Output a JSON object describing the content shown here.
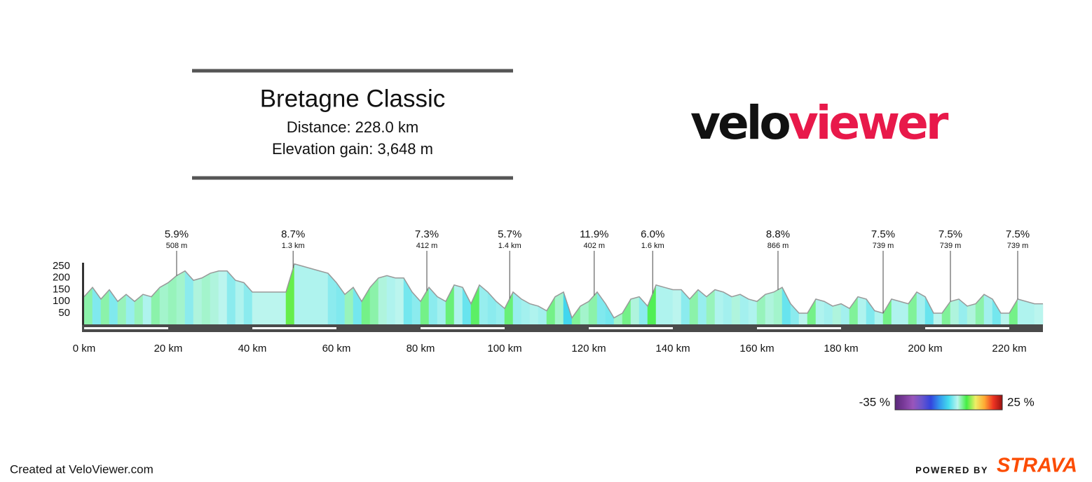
{
  "header": {
    "title": "Bretagne Classic",
    "distance": "Distance: 228.0 km",
    "elevation_gain": "Elevation gain: 3,648 m"
  },
  "logo": {
    "part1": "velo",
    "part2": "viewer"
  },
  "chart_data": {
    "type": "area",
    "x": [
      0,
      2,
      4,
      6,
      8,
      10,
      12,
      14,
      16,
      18,
      20,
      22,
      24,
      26,
      28,
      30,
      32,
      34,
      36,
      38,
      40,
      42,
      44,
      46,
      48,
      50,
      52,
      54,
      56,
      58,
      60,
      62,
      64,
      66,
      68,
      70,
      72,
      74,
      76,
      78,
      80,
      82,
      84,
      86,
      88,
      90,
      92,
      94,
      96,
      98,
      100,
      102,
      104,
      106,
      108,
      110,
      112,
      114,
      116,
      118,
      120,
      122,
      124,
      126,
      128,
      130,
      132,
      134,
      136,
      138,
      140,
      142,
      144,
      146,
      148,
      150,
      152,
      154,
      156,
      158,
      160,
      162,
      164,
      166,
      168,
      170,
      172,
      174,
      176,
      178,
      180,
      182,
      184,
      186,
      188,
      190,
      192,
      194,
      196,
      198,
      200,
      202,
      204,
      206,
      208,
      210,
      212,
      214,
      216,
      218,
      220,
      222,
      224,
      226,
      228
    ],
    "values": [
      120,
      160,
      110,
      150,
      100,
      130,
      100,
      130,
      120,
      160,
      180,
      210,
      230,
      190,
      200,
      220,
      230,
      230,
      190,
      180,
      140,
      140,
      140,
      140,
      140,
      260,
      250,
      240,
      230,
      220,
      180,
      130,
      160,
      100,
      160,
      200,
      210,
      200,
      200,
      140,
      100,
      160,
      120,
      100,
      170,
      160,
      90,
      170,
      140,
      100,
      70,
      140,
      110,
      90,
      80,
      60,
      120,
      140,
      30,
      80,
      100,
      140,
      90,
      30,
      50,
      110,
      120,
      80,
      170,
      160,
      150,
      150,
      110,
      150,
      120,
      150,
      140,
      120,
      130,
      110,
      100,
      130,
      140,
      160,
      90,
      50,
      50,
      110,
      100,
      80,
      90,
      70,
      120,
      110,
      60,
      50,
      110,
      100,
      90,
      140,
      120,
      50,
      50,
      100,
      110,
      80,
      90,
      130,
      110,
      50,
      50,
      110,
      100,
      90,
      90
    ],
    "xlim": [
      0,
      228
    ],
    "ylim": [
      0,
      265
    ],
    "xticks": [
      {
        "value": 0,
        "label": "0 km"
      },
      {
        "value": 20,
        "label": "20 km"
      },
      {
        "value": 40,
        "label": "40 km"
      },
      {
        "value": 60,
        "label": "60 km"
      },
      {
        "value": 80,
        "label": "80 km"
      },
      {
        "value": 100,
        "label": "100 km"
      },
      {
        "value": 120,
        "label": "120 km"
      },
      {
        "value": 140,
        "label": "140 km"
      },
      {
        "value": 160,
        "label": "160 km"
      },
      {
        "value": 180,
        "label": "180 km"
      },
      {
        "value": 200,
        "label": "200 km"
      },
      {
        "value": 220,
        "label": "220 km"
      }
    ],
    "yticks": [
      50,
      100,
      150,
      200,
      250
    ],
    "line_color": "#999999",
    "annotations": [
      {
        "x": 22,
        "label": "5.9%",
        "sublabel": "508 m"
      },
      {
        "x": 49.7,
        "label": "8.7%",
        "sublabel": "1.3 km"
      },
      {
        "x": 81.5,
        "label": "7.3%",
        "sublabel": "412 m"
      },
      {
        "x": 101.2,
        "label": "5.7%",
        "sublabel": "1.4 km"
      },
      {
        "x": 121.3,
        "label": "11.9%",
        "sublabel": "402 m"
      },
      {
        "x": 135.2,
        "label": "6.0%",
        "sublabel": "1.6 km"
      },
      {
        "x": 165,
        "label": "8.8%",
        "sublabel": "866 m"
      },
      {
        "x": 190,
        "label": "7.5%",
        "sublabel": "739 m"
      },
      {
        "x": 206,
        "label": "7.5%",
        "sublabel": "739 m"
      },
      {
        "x": 222,
        "label": "7.5%",
        "sublabel": "739 m"
      }
    ],
    "colorbar": {
      "ticks": [
        {
          "value": -35,
          "label": "-35 %"
        },
        {
          "value": 25,
          "label": "25 %"
        }
      ],
      "colors": [
        "#5a2a7a",
        "#7a3a9a",
        "#9955bb",
        "#6a55cc",
        "#3344dd",
        "#3399ee",
        "#44ddee",
        "#bbf5ee",
        "#44ee44",
        "#eeee66",
        "#ffaa33",
        "#ee3322",
        "#991111"
      ]
    }
  },
  "footer": {
    "created": "Created at VeloViewer.com",
    "powered": "POWERED BY",
    "brand": "STRAVA"
  }
}
